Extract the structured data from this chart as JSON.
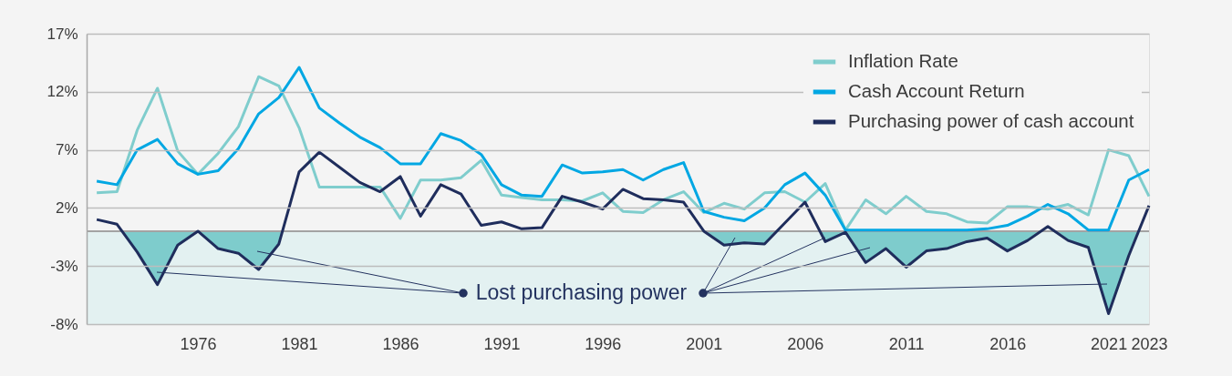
{
  "chart_data": {
    "type": "line",
    "x": [
      1971,
      1972,
      1973,
      1974,
      1975,
      1976,
      1977,
      1978,
      1979,
      1980,
      1981,
      1982,
      1983,
      1984,
      1985,
      1986,
      1987,
      1988,
      1989,
      1990,
      1991,
      1992,
      1993,
      1994,
      1995,
      1996,
      1997,
      1998,
      1999,
      2000,
      2001,
      2002,
      2003,
      2004,
      2005,
      2006,
      2007,
      2008,
      2009,
      2010,
      2011,
      2012,
      2013,
      2014,
      2015,
      2016,
      2017,
      2018,
      2019,
      2020,
      2021,
      2022,
      2023
    ],
    "xlim": [
      1970.5,
      2023
    ],
    "xticks": [
      1976,
      1981,
      1986,
      1991,
      1996,
      2001,
      2006,
      2011,
      2016,
      2021,
      2023
    ],
    "ylim": [
      -8,
      17
    ],
    "yticks": [
      {
        "value": -8,
        "label": "-8%"
      },
      {
        "value": -3,
        "label": "-3%"
      },
      {
        "value": 2,
        "label": "2%"
      },
      {
        "value": 7,
        "label": "7%"
      },
      {
        "value": 12,
        "label": "12%"
      },
      {
        "value": 17,
        "label": "17%"
      }
    ],
    "series": [
      {
        "name": "Inflation Rate",
        "color": "#7fcdcd",
        "values": [
          3.3,
          3.4,
          8.7,
          12.3,
          6.9,
          4.9,
          6.7,
          9.0,
          13.3,
          12.5,
          8.9,
          3.8,
          3.8,
          3.8,
          3.8,
          1.1,
          4.4,
          4.4,
          4.6,
          6.1,
          3.1,
          2.9,
          2.7,
          2.7,
          2.6,
          3.3,
          1.7,
          1.6,
          2.7,
          3.4,
          1.6,
          2.4,
          1.9,
          3.3,
          3.4,
          2.5,
          4.1,
          0.1,
          2.7,
          1.5,
          3.0,
          1.7,
          1.5,
          0.8,
          0.7,
          2.1,
          2.1,
          1.9,
          2.3,
          1.4,
          7.0,
          6.5,
          3.0
        ]
      },
      {
        "name": "Cash Account Return",
        "color": "#00a7e3",
        "values": [
          4.3,
          4.0,
          7.0,
          7.9,
          5.8,
          4.9,
          5.2,
          7.1,
          10.1,
          11.5,
          14.1,
          10.6,
          9.3,
          8.1,
          7.2,
          5.8,
          5.8,
          8.4,
          7.8,
          6.6,
          4.0,
          3.1,
          3.0,
          5.7,
          5.0,
          5.1,
          5.3,
          4.4,
          5.3,
          5.9,
          1.7,
          1.2,
          0.9,
          2.0,
          4.0,
          5.0,
          3.1,
          0.1,
          0.1,
          0.1,
          0.1,
          0.1,
          0.1,
          0.1,
          0.2,
          0.5,
          1.3,
          2.3,
          1.5,
          0.1,
          0.1,
          4.4,
          5.3
        ]
      },
      {
        "name": "Purchasing power of cash account",
        "type": "area",
        "color": "#1f2d5c",
        "values": [
          1.0,
          0.6,
          -1.8,
          -4.6,
          -1.2,
          0.0,
          -1.5,
          -1.9,
          -3.3,
          -1.1,
          5.1,
          6.8,
          5.5,
          4.2,
          3.4,
          4.7,
          1.3,
          4.0,
          3.2,
          0.5,
          0.8,
          0.2,
          0.3,
          3.0,
          2.5,
          1.9,
          3.6,
          2.8,
          2.7,
          2.5,
          0.0,
          -1.2,
          -1.0,
          -1.1,
          0.7,
          2.5,
          -0.9,
          -0.1,
          -2.7,
          -1.5,
          -3.1,
          -1.7,
          -1.5,
          -0.9,
          -0.6,
          -1.7,
          -0.8,
          0.4,
          -0.8,
          -1.4,
          -7.1,
          -2.1,
          2.2
        ]
      }
    ],
    "bands": [
      {
        "axis": "y",
        "from": -8,
        "to": 0,
        "color": "#e3f1f1"
      }
    ],
    "ref_lines": [
      {
        "axis": "y",
        "value": 0,
        "color": "#a3a3a3"
      }
    ],
    "annotations": [
      {
        "text": "Lost purchasing power",
        "x": 1989.1,
        "y": -5.3
      }
    ],
    "grid": "y",
    "legend": "top right"
  }
}
